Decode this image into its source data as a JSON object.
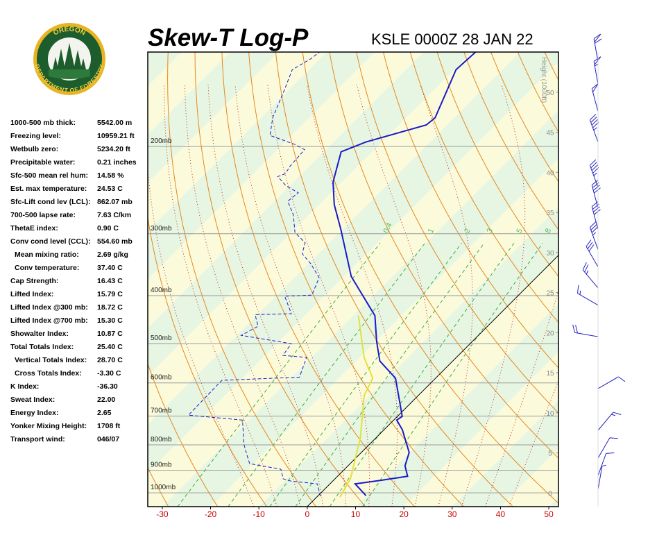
{
  "logo": {
    "top": "OREGON",
    "bottom": "DEPARTMENT OF FORESTRY"
  },
  "stats": [
    {
      "label": "1000-500 mb thick:",
      "value": "5542.00 m",
      "sub": false
    },
    {
      "label": "Freezing level:",
      "value": "10959.21 ft",
      "sub": false
    },
    {
      "label": "Wetbulb zero:",
      "value": "5234.20 ft",
      "sub": false
    },
    {
      "label": "Precipitable water:",
      "value": "0.21 inches",
      "sub": false
    },
    {
      "label": "Sfc-500 mean rel hum:",
      "value": "14.58 %",
      "sub": false
    },
    {
      "label": "Est. max temperature:",
      "value": "24.53 C",
      "sub": false
    },
    {
      "label": "Sfc-Lift cond lev (LCL):",
      "value": "862.07 mb",
      "sub": false
    },
    {
      "label": "700-500 lapse rate:",
      "value": "7.63 C/km",
      "sub": false
    },
    {
      "label": "ThetaE index:",
      "value": "0.90 C",
      "sub": false
    },
    {
      "label": "Conv cond level (CCL):",
      "value": "554.60 mb",
      "sub": false
    },
    {
      "label": "Mean mixing ratio:",
      "value": "2.69 g/kg",
      "sub": true
    },
    {
      "label": "Conv temperature:",
      "value": "37.40 C",
      "sub": true
    },
    {
      "label": "Cap Strength:",
      "value": "16.43 C",
      "sub": false
    },
    {
      "label": "Lifted Index:",
      "value": "15.79 C",
      "sub": false
    },
    {
      "label": "Lifted Index @300 mb:",
      "value": "18.72 C",
      "sub": false
    },
    {
      "label": "Lifted Index @700 mb:",
      "value": "15.30 C",
      "sub": false
    },
    {
      "label": "Showalter Index:",
      "value": "10.87 C",
      "sub": false
    },
    {
      "label": "Total Totals Index:",
      "value": "25.40 C",
      "sub": false
    },
    {
      "label": "Vertical Totals Index:",
      "value": "28.70 C",
      "sub": true
    },
    {
      "label": "Cross Totals Index:",
      "value": "-3.30 C",
      "sub": true
    },
    {
      "label": "K Index:",
      "value": "-36.30",
      "sub": false
    },
    {
      "label": "Sweat Index:",
      "value": "22.00",
      "sub": false
    },
    {
      "label": "Energy Index:",
      "value": "2.65",
      "sub": false
    },
    {
      "label": "Yonker Mixing Height:",
      "value": "1708 ft",
      "sub": false
    },
    {
      "label": "Transport wind:",
      "value": "046/07",
      "sub": false
    }
  ],
  "chart_data": {
    "type": "skew-t",
    "title": "Skew-T Log-P",
    "subtitle": "KSLE 0000Z 28 JAN 22",
    "xlim": [
      -33,
      52
    ],
    "xticks": [
      -30,
      -20,
      -10,
      0,
      10,
      20,
      30,
      40,
      50
    ],
    "ylim": [
      1066,
      129
    ],
    "log_y": true,
    "yticks": [
      {
        "value": 1000,
        "label": "1000mb"
      },
      {
        "value": 900,
        "label": "900mb"
      },
      {
        "value": 800,
        "label": "800mb"
      },
      {
        "value": 700,
        "label": "700mb"
      },
      {
        "value": 600,
        "label": "600mb"
      },
      {
        "value": 500,
        "label": "500mb"
      },
      {
        "value": 400,
        "label": "400mb"
      },
      {
        "value": 300,
        "label": "300mb"
      },
      {
        "value": 200,
        "label": "200mb"
      }
    ],
    "y2label": "Height (1000ft)",
    "y2lim": [
      -1.7,
      55.0
    ],
    "y2ticks": [
      0,
      5,
      10,
      15,
      20,
      25,
      30,
      35,
      40,
      45,
      50
    ],
    "mixing_ratios": [
      0.4,
      1,
      2,
      3,
      5,
      8
    ],
    "series": [
      {
        "color": "#1a1ac8",
        "dashed": false,
        "pressure": [
          1013,
          959,
          944,
          926,
          882,
          829,
          746,
          713,
          701,
          587,
          542,
          495,
          439,
          366,
          294,
          262,
          236,
          205,
          196,
          181,
          175,
          140,
          129
        ],
        "temperature": [
          9.9,
          5.2,
          9.7,
          14.5,
          11.8,
          9.9,
          3.8,
          0.6,
          1.0,
          -8.3,
          -15.1,
          -19.8,
          -25.5,
          -38.5,
          -50.4,
          -56.9,
          -61.8,
          -66.4,
          -63.3,
          -54.3,
          -54.0,
          -59.6,
          -59.2
        ]
      },
      {
        "color": "#1a1ac8",
        "dashed": true,
        "pressure": [
          1016,
          959,
          947,
          937,
          896,
          873,
          838,
          798,
          713,
          697,
          593,
          584,
          533,
          528,
          500,
          481,
          461,
          437,
          435,
          401,
          399,
          368,
          345,
          329,
          313,
          298,
          275,
          258,
          248,
          240,
          230,
          227,
          219,
          203,
          198,
          190,
          175,
          154,
          140,
          133,
          129
        ],
        "temperature": [
          0.6,
          -2.6,
          -8.6,
          -10.7,
          -13.2,
          -20.8,
          -23.2,
          -26.0,
          -31.3,
          -43.5,
          -43.8,
          -28.4,
          -31.0,
          -36.3,
          -37.0,
          -49.1,
          -47.5,
          -50.5,
          -43.2,
          -48.2,
          -42.8,
          -44.9,
          -49.5,
          -53.4,
          -55.0,
          -59.3,
          -63.2,
          -67.2,
          -66.8,
          -70.8,
          -74.4,
          -73.4,
          -74.0,
          -74.4,
          -77.6,
          -84.5,
          -87.6,
          -90.9,
          -93.5,
          -91.9,
          -91.5
        ]
      },
      {
        "color": "#e2e23a",
        "dashed": false,
        "pressure": [
          1020,
          937,
          773,
          636,
          587,
          533,
          439
        ],
        "temperature": [
          4.8,
          3.2,
          -3.3,
          -11.2,
          -13.0,
          -19.1,
          -28.9
        ]
      }
    ],
    "winds": {
      "color": "#2020c0",
      "pressure": [
        135,
        150,
        170,
        196,
        242,
        266,
        294,
        323,
        350,
        386,
        418,
        484,
        616,
        748,
        851,
        923,
        984
      ],
      "direction": [
        350,
        350,
        345,
        340,
        340,
        345,
        345,
        340,
        330,
        320,
        300,
        280,
        60,
        40,
        30,
        20,
        10
      ],
      "speed": [
        60,
        55,
        50,
        45,
        45,
        40,
        40,
        35,
        30,
        25,
        15,
        20,
        10,
        15,
        10,
        10,
        5
      ]
    }
  }
}
